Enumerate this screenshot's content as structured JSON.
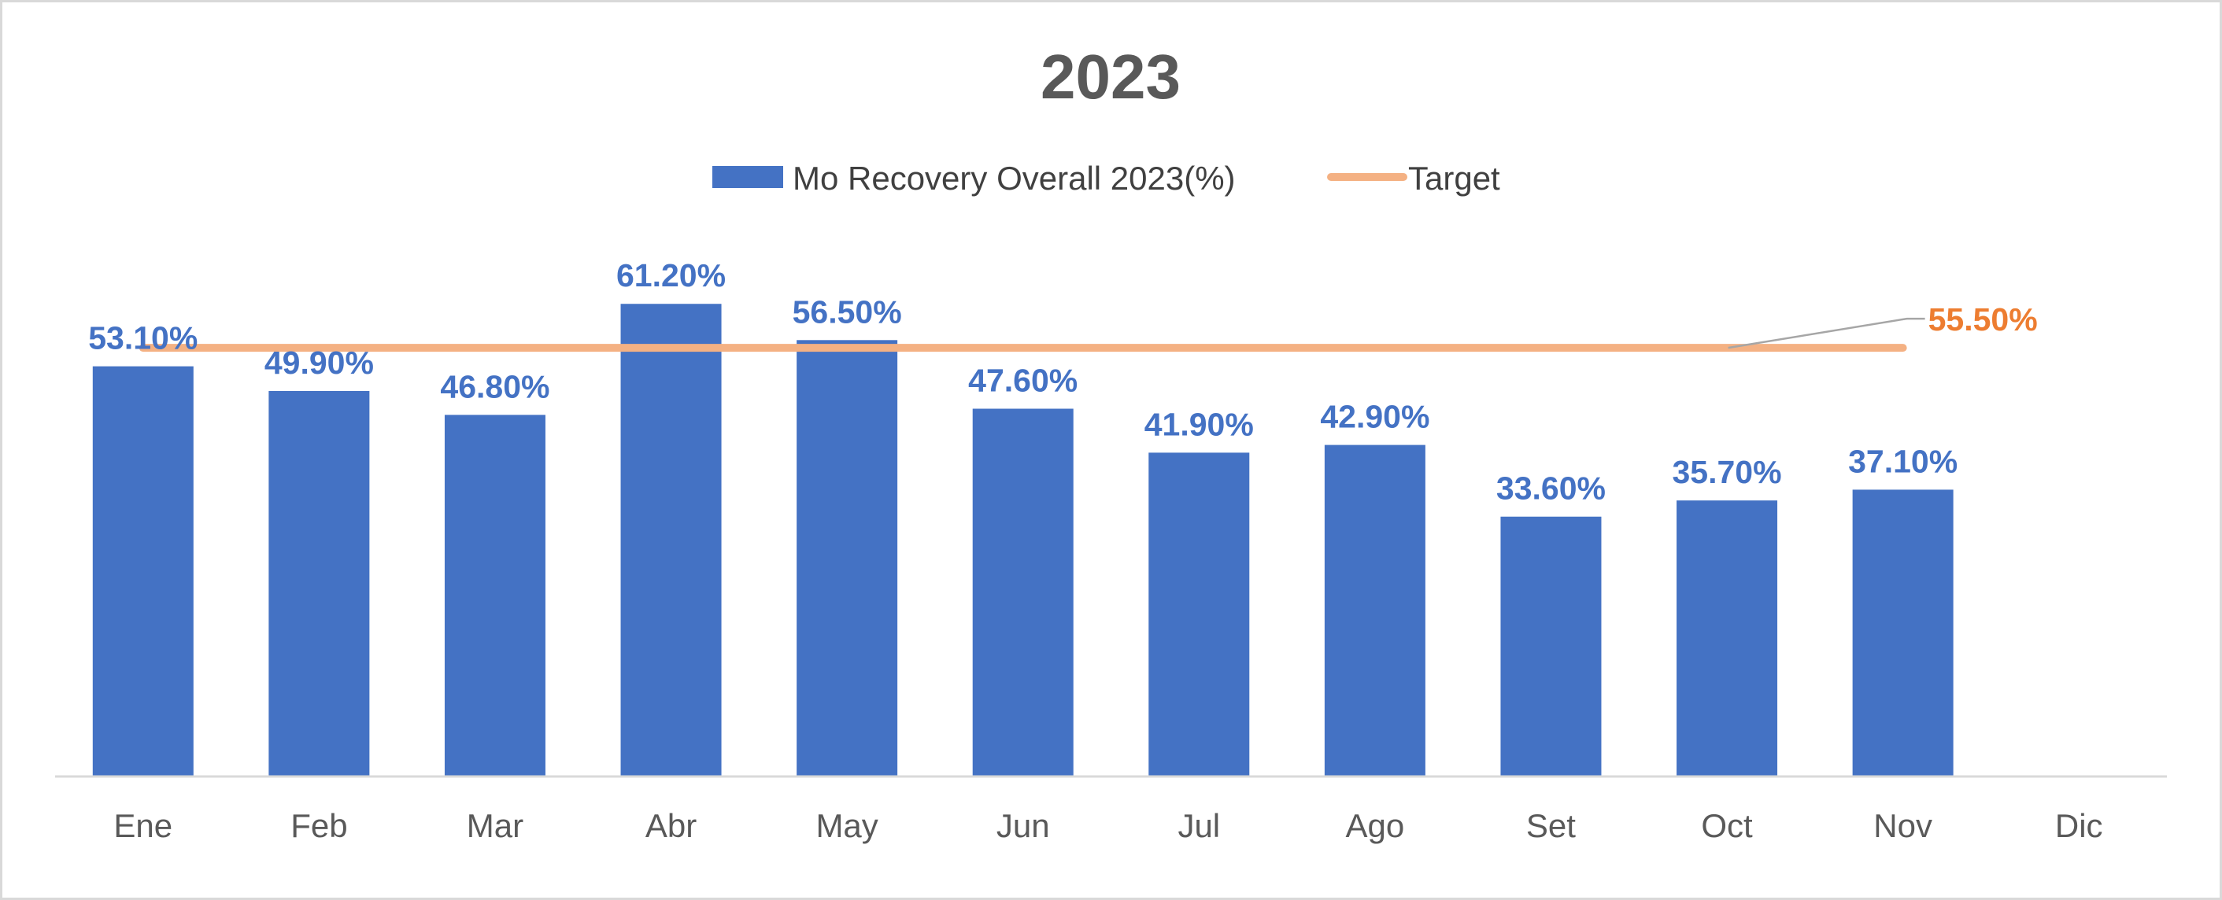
{
  "chart_data": {
    "type": "bar",
    "title": "2023",
    "categories": [
      "Ene",
      "Feb",
      "Mar",
      "Abr",
      "May",
      "Jun",
      "Jul",
      "Ago",
      "Set",
      "Oct",
      "Nov",
      "Dic"
    ],
    "series": [
      {
        "name": "Mo Recovery Overall 2023(%)",
        "type": "bar",
        "color": "#4472c4",
        "values": [
          53.1,
          49.9,
          46.8,
          61.2,
          56.5,
          47.6,
          41.9,
          42.9,
          33.6,
          35.7,
          37.1,
          null
        ],
        "labels": [
          "53.10%",
          "49.90%",
          "46.80%",
          "61.20%",
          "56.50%",
          "47.60%",
          "41.90%",
          "42.90%",
          "33.60%",
          "35.70%",
          "37.10%",
          ""
        ]
      },
      {
        "name": "Target",
        "type": "line",
        "color": "#f4b183",
        "values": [
          55.5,
          55.5,
          55.5,
          55.5,
          55.5,
          55.5,
          55.5,
          55.5,
          55.5,
          55.5,
          55.5,
          null
        ],
        "end_label": "55.50%",
        "end_label_color": "#ed7d31"
      }
    ],
    "ylim": [
      0,
      70
    ],
    "grid": false,
    "legend": "top-center"
  }
}
